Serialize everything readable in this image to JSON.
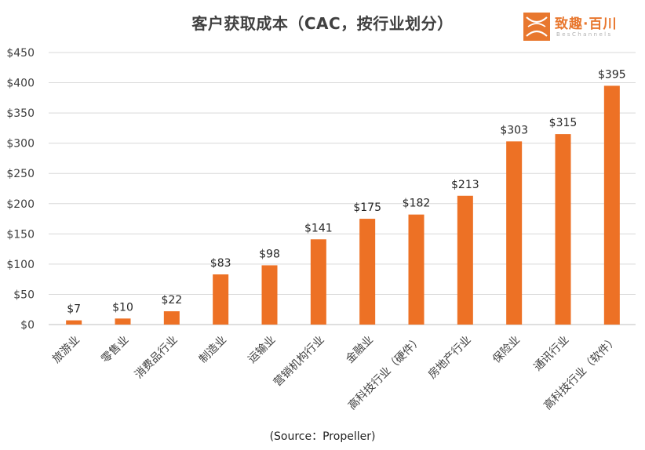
{
  "header": {
    "title": "客户获取成本（CAC，按行业划分）"
  },
  "logo": {
    "name": "致趣·百川",
    "sub": "BesChannels",
    "color": "#e8772e"
  },
  "footer": {
    "source": "(Source：Propeller)"
  },
  "chart_data": {
    "type": "bar",
    "title": "客户获取成本（CAC，按行业划分）",
    "categories": [
      "旅游业",
      "零售业",
      "消费品行业",
      "制造业",
      "运输业",
      "营销机构行业",
      "金融业",
      "高科技行业（硬件）",
      "房地产行业",
      "保险业",
      "通讯行业",
      "高科技行业（软件）"
    ],
    "values": [
      7,
      10,
      22,
      83,
      98,
      141,
      175,
      182,
      213,
      303,
      315,
      395
    ],
    "value_labels": [
      "$7",
      "$10",
      "$22",
      "$83",
      "$98",
      "$141",
      "$175",
      "$182",
      "$213",
      "$303",
      "$315",
      "$395"
    ],
    "ylim": [
      0,
      450
    ],
    "yticks": [
      0,
      50,
      100,
      150,
      200,
      250,
      300,
      350,
      400,
      450
    ],
    "ytick_labels": [
      "$0",
      "$50",
      "$100",
      "$150",
      "$200",
      "$250",
      "$300",
      "$350",
      "$400",
      "$450"
    ],
    "bar_color": "#ed7125",
    "grid": true,
    "legend": false
  }
}
